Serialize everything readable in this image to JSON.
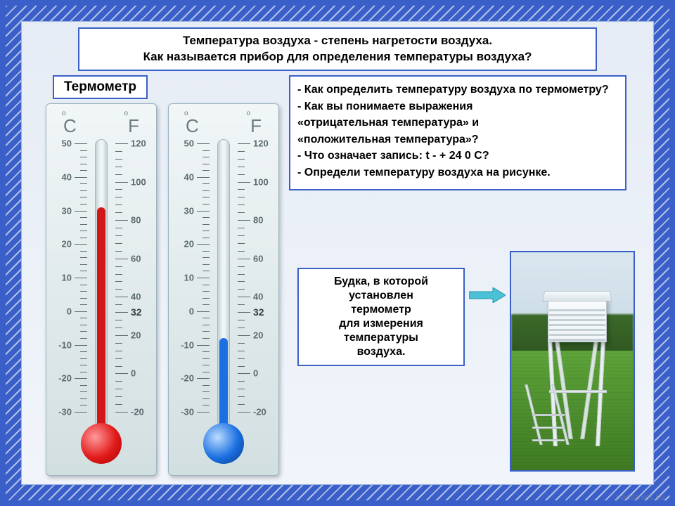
{
  "colors": {
    "frame": "#3a5fc8",
    "panel_bg_top": "#e6ecf5",
    "panel_bg_bottom": "#f1f5fb",
    "box_border": "#3a5fc8",
    "tick": "#5c6b6f",
    "fluid_red": "#d11717",
    "fluid_blue": "#1a6fe1",
    "arrow": "#4cc1d6"
  },
  "title_line1": "Температура воздуха - степень нагретости воздуха.",
  "title_line2": "Как называется прибор для определения температуры воздуха?",
  "label": "Термометр",
  "questions": {
    "q1": "Как определить температуру воздуха  по термометру?",
    "q2a": "- Как вы понимаете выражения",
    "q2b": " «отрицательная температура» и",
    "q2c": "«положительная температура»?",
    "q3": "Что означает запись:  t  - + 24 0 С?",
    "q4": " Определи температуру воздуха на рисунке."
  },
  "caption_l1": "Будка, в которой",
  "caption_l2": "установлен",
  "caption_l3": "термометр",
  "caption_l4": "для измерения",
  "caption_l5": "температуры",
  "caption_l6": "воздуха.",
  "watermark": "pedsovet.su",
  "thermo": {
    "unitC": "C",
    "unitF": "F",
    "deg": "o",
    "scale_C": {
      "min": -30,
      "max": 50,
      "major_step": 10,
      "minor_step": 2
    },
    "scale_F": {
      "min": -20,
      "max": 120,
      "major_step": 20,
      "minor_step": 4,
      "emph": [
        32
      ]
    },
    "left": {
      "fluid_color": "#d11717",
      "bulb": "red",
      "value_C": 31
    },
    "right": {
      "fluid_color": "#1a6fe1",
      "bulb": "blue",
      "value_C": -8
    }
  },
  "photo": {
    "desc": "Stevenson screen weather station on grass",
    "sky": "#d3e2ec",
    "trees": "#356324",
    "grass": "#4f9530",
    "box": "#eef3f6"
  }
}
